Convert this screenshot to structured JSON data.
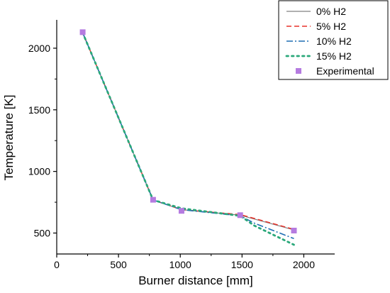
{
  "chart_data": {
    "type": "line",
    "title": "",
    "xlabel": "Burner distance [mm]",
    "ylabel": "Temperature [K]",
    "xlim": [
      0,
      2250
    ],
    "ylim": [
      330,
      2230
    ],
    "xticks": [
      0,
      500,
      1000,
      1500,
      2000
    ],
    "yticks": [
      500,
      1000,
      1500,
      2000
    ],
    "grid": false,
    "legend_position": "top-right",
    "series": [
      {
        "name": "0% H2",
        "style": "solid",
        "color": "#808080",
        "x": [
          210,
          780,
          1010,
          1485,
          1920
        ],
        "y": [
          2125,
          768,
          690,
          645,
          525
        ]
      },
      {
        "name": "5% H2",
        "style": "dashed",
        "color": "#e8322a",
        "x": [
          210,
          780,
          1010,
          1485,
          1920
        ],
        "y": [
          2125,
          768,
          690,
          650,
          530
        ]
      },
      {
        "name": "10% H2",
        "style": "dashdot",
        "color": "#1f6fb4",
        "x": [
          210,
          780,
          1010,
          1485,
          1600,
          1920
        ],
        "y": [
          2125,
          768,
          690,
          640,
          580,
          455
        ]
      },
      {
        "name": "15% H2",
        "style": "dotted",
        "color": "#2aa87a",
        "x": [
          210,
          780,
          1010,
          1485,
          1600,
          1920
        ],
        "y": [
          2125,
          768,
          700,
          640,
          560,
          405
        ]
      },
      {
        "name": "Experimental",
        "style": "marker",
        "color": "#b57be0",
        "x": [
          210,
          780,
          1010,
          1485,
          1920
        ],
        "y": [
          2130,
          770,
          680,
          645,
          520
        ]
      }
    ]
  }
}
